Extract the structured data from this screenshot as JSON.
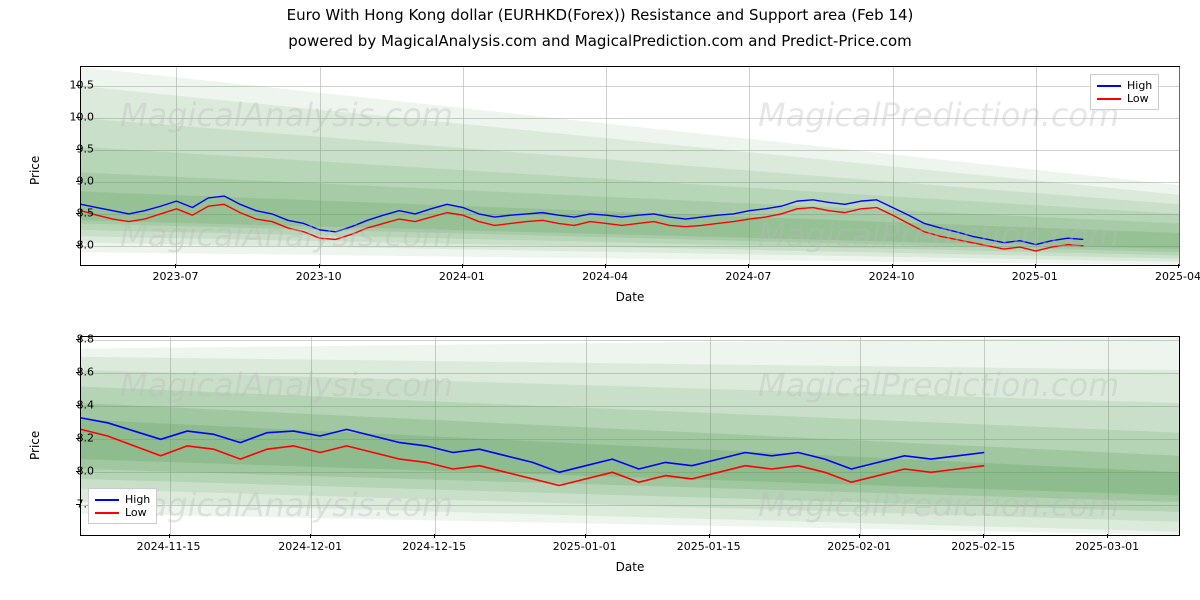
{
  "title_main": "Euro With Hong Kong dollar (EURHKD(Forex)) Resistance and Support area (Feb 14)",
  "title_sub": "powered by MagicalAnalysis.com and MagicalPrediction.com and Predict-Price.com",
  "watermark_left": "MagicalAnalysis.com",
  "watermark_right": "MagicalPrediction.com",
  "axis_label_x": "Date",
  "axis_label_y": "Price",
  "colors": {
    "high": "#0000ff",
    "low": "#ff0000",
    "grid": "#b0b0b0",
    "band_base": "#5a9f5a",
    "background": "#ffffff"
  },
  "legend": {
    "items": [
      {
        "label": "High",
        "color": "#0000ff"
      },
      {
        "label": "Low",
        "color": "#ff0000"
      }
    ]
  },
  "chart_top": {
    "type": "line",
    "ylim": [
      7.7,
      10.8
    ],
    "yticks": [
      8.0,
      8.5,
      9.0,
      9.5,
      10.0,
      10.5
    ],
    "xlim": [
      0,
      690
    ],
    "xticks": [
      {
        "x": 60,
        "label": "2023-07"
      },
      {
        "x": 150,
        "label": "2023-10"
      },
      {
        "x": 240,
        "label": "2024-01"
      },
      {
        "x": 330,
        "label": "2024-04"
      },
      {
        "x": 420,
        "label": "2024-07"
      },
      {
        "x": 510,
        "label": "2024-10"
      },
      {
        "x": 600,
        "label": "2025-01"
      },
      {
        "x": 690,
        "label": "2025-04"
      }
    ],
    "bands": [
      {
        "y0_start": 7.9,
        "y1_start": 10.8,
        "y0_end": 7.7,
        "y1_end": 8.95,
        "opacity": 0.1
      },
      {
        "y0_start": 8.05,
        "y1_start": 10.5,
        "y0_end": 7.75,
        "y1_end": 8.8,
        "opacity": 0.12
      },
      {
        "y0_start": 8.15,
        "y1_start": 10.0,
        "y0_end": 7.8,
        "y1_end": 8.65,
        "opacity": 0.14
      },
      {
        "y0_start": 8.25,
        "y1_start": 9.55,
        "y0_end": 7.85,
        "y1_end": 8.5,
        "opacity": 0.16
      },
      {
        "y0_start": 8.35,
        "y1_start": 9.15,
        "y0_end": 7.9,
        "y1_end": 8.35,
        "opacity": 0.18
      },
      {
        "y0_start": 8.4,
        "y1_start": 8.85,
        "y0_end": 7.95,
        "y1_end": 8.2,
        "opacity": 0.22
      }
    ],
    "series_high": [
      [
        0,
        8.65
      ],
      [
        10,
        8.6
      ],
      [
        20,
        8.55
      ],
      [
        30,
        8.5
      ],
      [
        40,
        8.55
      ],
      [
        50,
        8.62
      ],
      [
        60,
        8.7
      ],
      [
        70,
        8.6
      ],
      [
        80,
        8.75
      ],
      [
        90,
        8.78
      ],
      [
        100,
        8.65
      ],
      [
        110,
        8.55
      ],
      [
        120,
        8.5
      ],
      [
        130,
        8.4
      ],
      [
        140,
        8.35
      ],
      [
        150,
        8.25
      ],
      [
        160,
        8.22
      ],
      [
        170,
        8.3
      ],
      [
        180,
        8.4
      ],
      [
        190,
        8.48
      ],
      [
        200,
        8.55
      ],
      [
        210,
        8.5
      ],
      [
        220,
        8.58
      ],
      [
        230,
        8.65
      ],
      [
        240,
        8.6
      ],
      [
        250,
        8.5
      ],
      [
        260,
        8.45
      ],
      [
        270,
        8.48
      ],
      [
        280,
        8.5
      ],
      [
        290,
        8.52
      ],
      [
        300,
        8.48
      ],
      [
        310,
        8.45
      ],
      [
        320,
        8.5
      ],
      [
        330,
        8.48
      ],
      [
        340,
        8.45
      ],
      [
        350,
        8.48
      ],
      [
        360,
        8.5
      ],
      [
        370,
        8.45
      ],
      [
        380,
        8.42
      ],
      [
        390,
        8.45
      ],
      [
        400,
        8.48
      ],
      [
        410,
        8.5
      ],
      [
        420,
        8.55
      ],
      [
        430,
        8.58
      ],
      [
        440,
        8.62
      ],
      [
        450,
        8.7
      ],
      [
        460,
        8.72
      ],
      [
        470,
        8.68
      ],
      [
        480,
        8.65
      ],
      [
        490,
        8.7
      ],
      [
        500,
        8.72
      ],
      [
        510,
        8.6
      ],
      [
        520,
        8.48
      ],
      [
        530,
        8.35
      ],
      [
        540,
        8.28
      ],
      [
        550,
        8.22
      ],
      [
        560,
        8.15
      ],
      [
        570,
        8.1
      ],
      [
        580,
        8.05
      ],
      [
        590,
        8.08
      ],
      [
        600,
        8.02
      ],
      [
        610,
        8.08
      ],
      [
        620,
        8.12
      ],
      [
        630,
        8.1
      ]
    ],
    "series_low": [
      [
        0,
        8.55
      ],
      [
        10,
        8.48
      ],
      [
        20,
        8.42
      ],
      [
        30,
        8.38
      ],
      [
        40,
        8.42
      ],
      [
        50,
        8.5
      ],
      [
        60,
        8.58
      ],
      [
        70,
        8.48
      ],
      [
        80,
        8.62
      ],
      [
        90,
        8.65
      ],
      [
        100,
        8.52
      ],
      [
        110,
        8.42
      ],
      [
        120,
        8.38
      ],
      [
        130,
        8.28
      ],
      [
        140,
        8.22
      ],
      [
        150,
        8.12
      ],
      [
        160,
        8.1
      ],
      [
        170,
        8.18
      ],
      [
        180,
        8.28
      ],
      [
        190,
        8.35
      ],
      [
        200,
        8.42
      ],
      [
        210,
        8.38
      ],
      [
        220,
        8.45
      ],
      [
        230,
        8.52
      ],
      [
        240,
        8.48
      ],
      [
        250,
        8.38
      ],
      [
        260,
        8.32
      ],
      [
        270,
        8.35
      ],
      [
        280,
        8.38
      ],
      [
        290,
        8.4
      ],
      [
        300,
        8.35
      ],
      [
        310,
        8.32
      ],
      [
        320,
        8.38
      ],
      [
        330,
        8.35
      ],
      [
        340,
        8.32
      ],
      [
        350,
        8.35
      ],
      [
        360,
        8.38
      ],
      [
        370,
        8.32
      ],
      [
        380,
        8.3
      ],
      [
        390,
        8.32
      ],
      [
        400,
        8.35
      ],
      [
        410,
        8.38
      ],
      [
        420,
        8.42
      ],
      [
        430,
        8.45
      ],
      [
        440,
        8.5
      ],
      [
        450,
        8.58
      ],
      [
        460,
        8.6
      ],
      [
        470,
        8.55
      ],
      [
        480,
        8.52
      ],
      [
        490,
        8.58
      ],
      [
        500,
        8.6
      ],
      [
        510,
        8.48
      ],
      [
        520,
        8.35
      ],
      [
        530,
        8.22
      ],
      [
        540,
        8.15
      ],
      [
        550,
        8.1
      ],
      [
        560,
        8.05
      ],
      [
        570,
        8.0
      ],
      [
        580,
        7.95
      ],
      [
        590,
        7.98
      ],
      [
        600,
        7.92
      ],
      [
        610,
        7.98
      ],
      [
        620,
        8.02
      ],
      [
        630,
        8.0
      ]
    ],
    "line_width": 1.4
  },
  "chart_bottom": {
    "type": "line",
    "ylim": [
      7.62,
      8.82
    ],
    "yticks": [
      7.8,
      8.0,
      8.2,
      8.4,
      8.6,
      8.8
    ],
    "xlim": [
      0,
      124
    ],
    "xticks": [
      {
        "x": 10,
        "label": "2024-11-15"
      },
      {
        "x": 26,
        "label": "2024-12-01"
      },
      {
        "x": 40,
        "label": "2024-12-15"
      },
      {
        "x": 57,
        "label": "2025-01-01"
      },
      {
        "x": 71,
        "label": "2025-01-15"
      },
      {
        "x": 88,
        "label": "2025-02-01"
      },
      {
        "x": 102,
        "label": "2025-02-15"
      },
      {
        "x": 116,
        "label": "2025-03-01"
      }
    ],
    "bands": [
      {
        "y0_start": 7.75,
        "y1_start": 8.75,
        "y0_end": 7.62,
        "y1_end": 8.82,
        "opacity": 0.1
      },
      {
        "y0_start": 7.82,
        "y1_start": 8.7,
        "y0_end": 7.64,
        "y1_end": 8.62,
        "opacity": 0.12
      },
      {
        "y0_start": 7.9,
        "y1_start": 8.62,
        "y0_end": 7.7,
        "y1_end": 8.42,
        "opacity": 0.14
      },
      {
        "y0_start": 7.96,
        "y1_start": 8.52,
        "y0_end": 7.76,
        "y1_end": 8.24,
        "opacity": 0.18
      },
      {
        "y0_start": 8.02,
        "y1_start": 8.42,
        "y0_end": 7.82,
        "y1_end": 8.1,
        "opacity": 0.22
      },
      {
        "y0_start": 8.08,
        "y1_start": 8.32,
        "y0_end": 7.86,
        "y1_end": 8.0,
        "opacity": 0.26
      }
    ],
    "series_high": [
      [
        0,
        8.33
      ],
      [
        3,
        8.3
      ],
      [
        6,
        8.25
      ],
      [
        9,
        8.2
      ],
      [
        12,
        8.25
      ],
      [
        15,
        8.23
      ],
      [
        18,
        8.18
      ],
      [
        21,
        8.24
      ],
      [
        24,
        8.25
      ],
      [
        27,
        8.22
      ],
      [
        30,
        8.26
      ],
      [
        33,
        8.22
      ],
      [
        36,
        8.18
      ],
      [
        39,
        8.16
      ],
      [
        42,
        8.12
      ],
      [
        45,
        8.14
      ],
      [
        48,
        8.1
      ],
      [
        51,
        8.06
      ],
      [
        54,
        8.0
      ],
      [
        57,
        8.04
      ],
      [
        60,
        8.08
      ],
      [
        63,
        8.02
      ],
      [
        66,
        8.06
      ],
      [
        69,
        8.04
      ],
      [
        72,
        8.08
      ],
      [
        75,
        8.12
      ],
      [
        78,
        8.1
      ],
      [
        81,
        8.12
      ],
      [
        84,
        8.08
      ],
      [
        87,
        8.02
      ],
      [
        90,
        8.06
      ],
      [
        93,
        8.1
      ],
      [
        96,
        8.08
      ],
      [
        99,
        8.1
      ],
      [
        102,
        8.12
      ]
    ],
    "series_low": [
      [
        0,
        8.26
      ],
      [
        3,
        8.22
      ],
      [
        6,
        8.16
      ],
      [
        9,
        8.1
      ],
      [
        12,
        8.16
      ],
      [
        15,
        8.14
      ],
      [
        18,
        8.08
      ],
      [
        21,
        8.14
      ],
      [
        24,
        8.16
      ],
      [
        27,
        8.12
      ],
      [
        30,
        8.16
      ],
      [
        33,
        8.12
      ],
      [
        36,
        8.08
      ],
      [
        39,
        8.06
      ],
      [
        42,
        8.02
      ],
      [
        45,
        8.04
      ],
      [
        48,
        8.0
      ],
      [
        51,
        7.96
      ],
      [
        54,
        7.92
      ],
      [
        57,
        7.96
      ],
      [
        60,
        8.0
      ],
      [
        63,
        7.94
      ],
      [
        66,
        7.98
      ],
      [
        69,
        7.96
      ],
      [
        72,
        8.0
      ],
      [
        75,
        8.04
      ],
      [
        78,
        8.02
      ],
      [
        81,
        8.04
      ],
      [
        84,
        8.0
      ],
      [
        87,
        7.94
      ],
      [
        90,
        7.98
      ],
      [
        93,
        8.02
      ],
      [
        96,
        8.0
      ],
      [
        99,
        8.02
      ],
      [
        102,
        8.04
      ]
    ],
    "line_width": 1.6
  }
}
